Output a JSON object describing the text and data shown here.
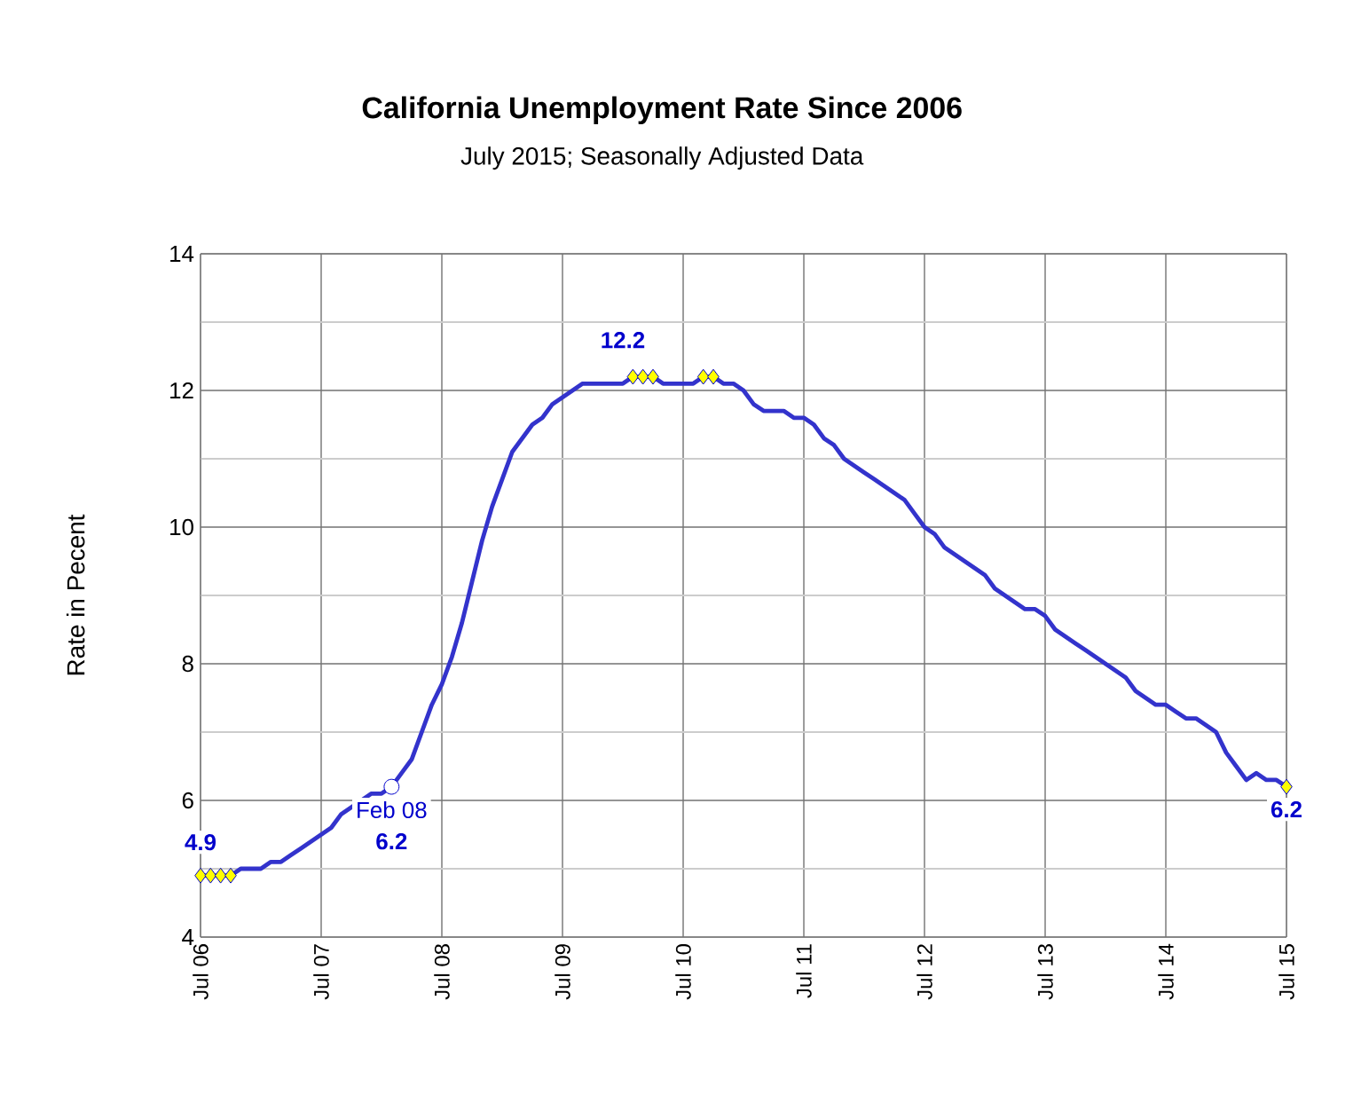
{
  "chart_data": {
    "type": "line",
    "title": "California Unemployment Rate Since 2006",
    "subtitle": "July 2015; Seasonally Adjusted Data",
    "ylabel": "Rate in Pecent",
    "x": [
      "2006-07",
      "2006-08",
      "2006-09",
      "2006-10",
      "2006-11",
      "2006-12",
      "2007-01",
      "2007-02",
      "2007-03",
      "2007-04",
      "2007-05",
      "2007-06",
      "2007-07",
      "2007-08",
      "2007-09",
      "2007-10",
      "2007-11",
      "2007-12",
      "2008-01",
      "2008-02",
      "2008-03",
      "2008-04",
      "2008-05",
      "2008-06",
      "2008-07",
      "2008-08",
      "2008-09",
      "2008-10",
      "2008-11",
      "2008-12",
      "2009-01",
      "2009-02",
      "2009-03",
      "2009-04",
      "2009-05",
      "2009-06",
      "2009-07",
      "2009-08",
      "2009-09",
      "2009-10",
      "2009-11",
      "2009-12",
      "2010-01",
      "2010-02",
      "2010-03",
      "2010-04",
      "2010-05",
      "2010-06",
      "2010-07",
      "2010-08",
      "2010-09",
      "2010-10",
      "2010-11",
      "2010-12",
      "2011-01",
      "2011-02",
      "2011-03",
      "2011-04",
      "2011-05",
      "2011-06",
      "2011-07",
      "2011-08",
      "2011-09",
      "2011-10",
      "2011-11",
      "2011-12",
      "2012-01",
      "2012-02",
      "2012-03",
      "2012-04",
      "2012-05",
      "2012-06",
      "2012-07",
      "2012-08",
      "2012-09",
      "2012-10",
      "2012-11",
      "2012-12",
      "2013-01",
      "2013-02",
      "2013-03",
      "2013-04",
      "2013-05",
      "2013-06",
      "2013-07",
      "2013-08",
      "2013-09",
      "2013-10",
      "2013-11",
      "2013-12",
      "2014-01",
      "2014-02",
      "2014-03",
      "2014-04",
      "2014-05",
      "2014-06",
      "2014-07",
      "2014-08",
      "2014-09",
      "2014-10",
      "2014-11",
      "2014-12",
      "2015-01",
      "2015-02",
      "2015-03",
      "2015-04",
      "2015-05",
      "2015-06",
      "2015-07"
    ],
    "series": [
      {
        "color": "#3333cc",
        "marker": "none",
        "values": [
          4.9,
          4.9,
          4.9,
          4.9,
          5.0,
          5.0,
          5.0,
          5.1,
          5.1,
          5.2,
          5.3,
          5.4,
          5.5,
          5.6,
          5.8,
          5.9,
          6.0,
          6.1,
          6.1,
          6.2,
          6.4,
          6.6,
          7.0,
          7.4,
          7.7,
          8.1,
          8.6,
          9.2,
          9.8,
          10.3,
          10.7,
          11.1,
          11.3,
          11.5,
          11.6,
          11.8,
          11.9,
          12.0,
          12.1,
          12.1,
          12.1,
          12.1,
          12.1,
          12.2,
          12.2,
          12.2,
          12.1,
          12.1,
          12.1,
          12.1,
          12.2,
          12.2,
          12.1,
          12.1,
          12.0,
          11.8,
          11.7,
          11.7,
          11.7,
          11.6,
          11.6,
          11.5,
          11.3,
          11.2,
          11.0,
          10.9,
          10.8,
          10.7,
          10.6,
          10.5,
          10.4,
          10.2,
          10.0,
          9.9,
          9.7,
          9.6,
          9.5,
          9.4,
          9.3,
          9.1,
          9.0,
          8.9,
          8.8,
          8.8,
          8.7,
          8.5,
          8.4,
          8.3,
          8.2,
          8.1,
          8.0,
          7.9,
          7.8,
          7.6,
          7.5,
          7.4,
          7.4,
          7.3,
          7.2,
          7.2,
          7.1,
          7.0,
          6.7,
          6.5,
          6.3,
          6.4,
          6.3,
          6.3,
          6.2
        ]
      },
      {
        "type": "scatter",
        "color": "#ffff00",
        "marker": "diamond",
        "x": [
          "2006-07",
          "2006-08",
          "2006-09",
          "2006-10",
          "2010-02",
          "2010-03",
          "2010-04",
          "2010-09",
          "2010-10",
          "2015-07"
        ],
        "values": [
          4.9,
          4.9,
          4.9,
          4.9,
          12.2,
          12.2,
          12.2,
          12.2,
          12.2,
          6.2
        ]
      },
      {
        "type": "scatter",
        "color": "#ffffff",
        "marker": "circle",
        "x": [
          "2008-02"
        ],
        "values": [
          6.2
        ]
      }
    ],
    "xlim": [
      "2006-07",
      "2015-07"
    ],
    "xticks": [
      {
        "value": "2006-07",
        "label": "Jul 06"
      },
      {
        "value": "2007-07",
        "label": "Jul 07"
      },
      {
        "value": "2008-07",
        "label": "Jul 08"
      },
      {
        "value": "2009-07",
        "label": "Jul 09"
      },
      {
        "value": "2010-07",
        "label": "Jul 10"
      },
      {
        "value": "2011-07",
        "label": "Jul 11"
      },
      {
        "value": "2012-07",
        "label": "Jul 12"
      },
      {
        "value": "2013-07",
        "label": "Jul 13"
      },
      {
        "value": "2014-07",
        "label": "Jul 14"
      },
      {
        "value": "2015-07",
        "label": "Jul 15"
      }
    ],
    "ylim": [
      4,
      14
    ],
    "yticks": [
      4,
      6,
      8,
      10,
      12,
      14
    ],
    "grid": true,
    "annotations": [
      {
        "text": "4.9",
        "x": "2006-07",
        "y": 4.9
      },
      {
        "text": "Feb 08",
        "x": "2008-02",
        "y": 6.2
      },
      {
        "text": "6.2",
        "x": "2008-02",
        "y": 6.2
      },
      {
        "text": "12.2",
        "x": "2010-01",
        "y": 12.2
      },
      {
        "text": "6.2",
        "x": "2015-07",
        "y": 6.2
      }
    ]
  }
}
